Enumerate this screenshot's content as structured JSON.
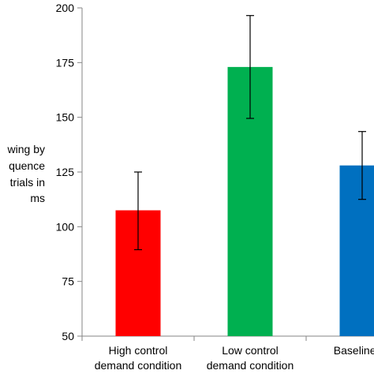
{
  "chart_data": {
    "type": "bar",
    "categories": [
      [
        "High control",
        "demand condition"
      ],
      [
        "Low control",
        "demand condition"
      ],
      [
        "Baseline co",
        ""
      ]
    ],
    "values": [
      107.5,
      173,
      128
    ],
    "errors_low": [
      89.5,
      149.5,
      112.5
    ],
    "errors_high": [
      125,
      196.5,
      143.5
    ],
    "bar_colors": [
      "#ff0000",
      "#00b050",
      "#0070c0"
    ],
    "ylim": [
      50,
      200
    ],
    "yticks": [
      50,
      75,
      100,
      125,
      150,
      175,
      200
    ],
    "ytick_labels": [
      "50",
      "75",
      "100",
      "125",
      "150",
      "175",
      "200"
    ],
    "ylabel_lines": [
      "wing by",
      "quence",
      "trials in",
      "ms"
    ],
    "title": "",
    "xlabel": "",
    "grid": false,
    "axis_color": "#868686",
    "error_color": "#000000"
  }
}
